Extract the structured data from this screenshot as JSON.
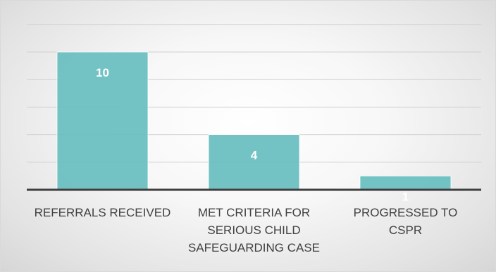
{
  "chart_data": {
    "type": "bar",
    "categories": [
      [
        "REFERRALS RECEIVED"
      ],
      [
        "MET CRITERIA FOR",
        "SERIOUS CHILD",
        "SAFEGUARDING CASE"
      ],
      [
        "PROGRESSED TO",
        "CSPR"
      ]
    ],
    "values": [
      10,
      4,
      1
    ],
    "data_labels": [
      "10",
      "4",
      "1"
    ],
    "title": "",
    "xlabel": "",
    "ylabel": "",
    "ylim": [
      0,
      12
    ],
    "grid": true,
    "legend": "none",
    "bar_color": "#6cbfc1"
  }
}
